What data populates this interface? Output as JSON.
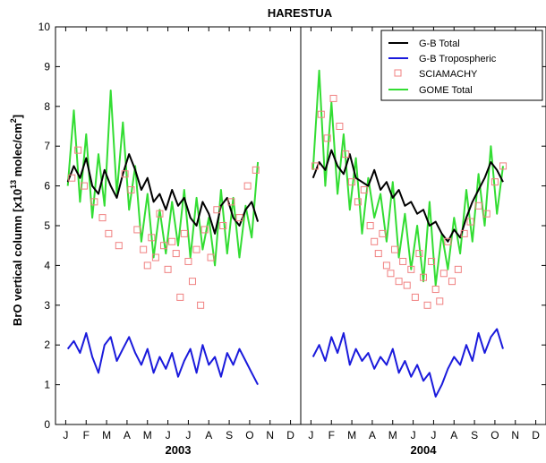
{
  "chart_data": {
    "type": "line",
    "title": "HARESTUA",
    "ylabel": "BrO vertical column [x10",
    "ylabel_exp": "13",
    "ylabel_mid": " molec/cm",
    "ylabel_exp2": "2",
    "ylabel_end": "]",
    "ylim": [
      0,
      10
    ],
    "yticks": [
      0,
      1,
      2,
      3,
      4,
      5,
      6,
      7,
      8,
      9,
      10
    ],
    "months": [
      "J",
      "F",
      "M",
      "A",
      "M",
      "J",
      "J",
      "A",
      "S",
      "O",
      "N",
      "D"
    ],
    "years": [
      "2003",
      "2004"
    ],
    "legend_position": "top-right",
    "colors": {
      "gb_total": "#000000",
      "gb_trop": "#1a1adc",
      "sciamachy": "#f08080",
      "gome": "#33dd33"
    },
    "series": [
      {
        "name": "G-B Total",
        "type": "line",
        "panels": [
          {
            "x": [
              0.6,
              0.9,
              1.2,
              1.5,
              1.8,
              2.1,
              2.4,
              2.7,
              3.0,
              3.3,
              3.6,
              3.9,
              4.2,
              4.5,
              4.8,
              5.1,
              5.4,
              5.7,
              6.0,
              6.3,
              6.6,
              6.9,
              7.2,
              7.5,
              7.8,
              8.1,
              8.4,
              8.7,
              9.0,
              9.3,
              9.6,
              9.9
            ],
            "y": [
              6.1,
              6.5,
              6.2,
              6.7,
              6.0,
              5.8,
              6.4,
              6.0,
              5.7,
              6.3,
              6.8,
              6.4,
              5.9,
              6.2,
              5.6,
              5.8,
              5.4,
              5.9,
              5.5,
              5.7,
              5.2,
              5.0,
              5.6,
              5.3,
              4.8,
              5.5,
              5.7,
              5.2,
              5.0,
              5.4,
              5.6,
              5.1
            ]
          },
          {
            "x": [
              0.6,
              0.9,
              1.2,
              1.5,
              1.8,
              2.1,
              2.4,
              2.7,
              3.0,
              3.3,
              3.6,
              3.9,
              4.2,
              4.5,
              4.8,
              5.1,
              5.4,
              5.7,
              6.0,
              6.3,
              6.6,
              6.9,
              7.2,
              7.5,
              7.8,
              8.1,
              8.4,
              8.7,
              9.0,
              9.3,
              9.6,
              9.9
            ],
            "y": [
              6.2,
              6.6,
              6.4,
              6.9,
              6.5,
              6.3,
              6.8,
              6.2,
              6.1,
              6.0,
              6.4,
              5.9,
              6.1,
              5.7,
              5.9,
              5.5,
              5.6,
              5.3,
              5.4,
              5.0,
              5.1,
              4.8,
              4.6,
              4.9,
              4.7,
              5.2,
              5.6,
              5.9,
              6.2,
              6.6,
              6.4,
              6.1
            ]
          }
        ]
      },
      {
        "name": "G-B Tropospheric",
        "type": "line",
        "panels": [
          {
            "x": [
              0.6,
              0.9,
              1.2,
              1.5,
              1.8,
              2.1,
              2.4,
              2.7,
              3.0,
              3.3,
              3.6,
              3.9,
              4.2,
              4.5,
              4.8,
              5.1,
              5.4,
              5.7,
              6.0,
              6.3,
              6.6,
              6.9,
              7.2,
              7.5,
              7.8,
              8.1,
              8.4,
              8.7,
              9.0,
              9.3,
              9.6,
              9.9
            ],
            "y": [
              1.9,
              2.1,
              1.8,
              2.3,
              1.7,
              1.3,
              2.0,
              2.2,
              1.6,
              1.9,
              2.2,
              1.8,
              1.5,
              1.9,
              1.3,
              1.7,
              1.4,
              1.8,
              1.2,
              1.6,
              1.9,
              1.3,
              2.0,
              1.5,
              1.7,
              1.2,
              1.8,
              1.5,
              1.9,
              1.6,
              1.3,
              1.0
            ]
          },
          {
            "x": [
              0.6,
              0.9,
              1.2,
              1.5,
              1.8,
              2.1,
              2.4,
              2.7,
              3.0,
              3.3,
              3.6,
              3.9,
              4.2,
              4.5,
              4.8,
              5.1,
              5.4,
              5.7,
              6.0,
              6.3,
              6.6,
              6.9,
              7.2,
              7.5,
              7.8,
              8.1,
              8.4,
              8.7,
              9.0,
              9.3,
              9.6,
              9.9
            ],
            "y": [
              1.7,
              2.0,
              1.6,
              2.2,
              1.8,
              2.3,
              1.5,
              1.9,
              1.6,
              1.8,
              1.4,
              1.7,
              1.5,
              1.9,
              1.3,
              1.6,
              1.2,
              1.5,
              1.1,
              1.3,
              0.7,
              1.0,
              1.4,
              1.7,
              1.5,
              2.0,
              1.6,
              2.3,
              1.8,
              2.2,
              2.4,
              1.9
            ]
          }
        ]
      },
      {
        "name": "SCIAMACHY",
        "type": "scatter",
        "panels": [
          {
            "x": [
              0.8,
              1.1,
              1.4,
              1.9,
              2.3,
              2.6,
              3.1,
              3.4,
              3.7,
              4.0,
              4.3,
              4.5,
              4.7,
              4.9,
              5.1,
              5.3,
              5.5,
              5.7,
              5.9,
              6.1,
              6.3,
              6.5,
              6.7,
              6.9,
              7.1,
              7.3,
              7.6,
              7.9,
              8.2,
              8.6,
              9.0,
              9.4,
              9.8
            ],
            "y": [
              6.2,
              6.9,
              6.0,
              5.6,
              5.2,
              4.8,
              4.5,
              6.3,
              5.9,
              4.9,
              4.4,
              4.0,
              4.7,
              4.2,
              5.3,
              4.5,
              3.9,
              4.6,
              4.3,
              3.2,
              4.8,
              4.1,
              3.6,
              4.4,
              3.0,
              4.9,
              4.2,
              5.4,
              5.0,
              5.6,
              5.2,
              6.0,
              6.4
            ]
          },
          {
            "x": [
              0.7,
              1.0,
              1.3,
              1.6,
              1.9,
              2.2,
              2.5,
              2.8,
              3.1,
              3.4,
              3.6,
              3.8,
              4.0,
              4.2,
              4.4,
              4.6,
              4.8,
              5.0,
              5.2,
              5.4,
              5.6,
              5.8,
              6.0,
              6.2,
              6.4,
              6.6,
              6.8,
              7.0,
              7.2,
              7.4,
              7.7,
              8.0,
              8.3,
              8.7,
              9.1,
              9.5,
              9.9
            ],
            "y": [
              6.5,
              7.8,
              7.2,
              8.2,
              7.5,
              6.8,
              6.1,
              5.6,
              5.9,
              5.0,
              4.6,
              4.3,
              4.8,
              4.0,
              3.8,
              4.4,
              3.6,
              4.1,
              3.5,
              3.9,
              3.2,
              4.3,
              3.7,
              3.0,
              4.1,
              3.4,
              3.1,
              3.8,
              4.6,
              3.6,
              3.9,
              4.8,
              5.1,
              5.5,
              5.3,
              6.1,
              6.5
            ]
          }
        ]
      },
      {
        "name": "GOME Total",
        "type": "line",
        "panels": [
          {
            "x": [
              0.6,
              0.9,
              1.2,
              1.5,
              1.8,
              2.1,
              2.4,
              2.7,
              3.0,
              3.3,
              3.6,
              3.9,
              4.2,
              4.5,
              4.8,
              5.1,
              5.4,
              5.7,
              6.0,
              6.3,
              6.6,
              6.9,
              7.2,
              7.5,
              7.8,
              8.1,
              8.4,
              8.7,
              9.0,
              9.3,
              9.6,
              9.9
            ],
            "y": [
              6.0,
              7.9,
              5.6,
              7.3,
              5.2,
              6.8,
              5.5,
              8.4,
              5.8,
              7.6,
              5.4,
              6.5,
              4.6,
              5.8,
              4.2,
              5.4,
              4.3,
              5.6,
              4.5,
              5.9,
              4.2,
              5.7,
              4.4,
              5.2,
              4.0,
              5.9,
              4.3,
              5.7,
              4.2,
              5.5,
              4.7,
              6.6
            ]
          },
          {
            "x": [
              0.6,
              0.9,
              1.2,
              1.5,
              1.8,
              2.1,
              2.4,
              2.7,
              3.0,
              3.3,
              3.6,
              3.9,
              4.2,
              4.5,
              4.8,
              5.1,
              5.4,
              5.7,
              6.0,
              6.3,
              6.6,
              6.9,
              7.2,
              7.5,
              7.8,
              8.1,
              8.4,
              8.7,
              9.0,
              9.3,
              9.6,
              9.9
            ],
            "y": [
              6.4,
              8.9,
              6.0,
              8.1,
              5.8,
              7.3,
              5.4,
              6.7,
              4.8,
              6.2,
              5.2,
              5.8,
              4.6,
              6.1,
              4.2,
              5.3,
              3.9,
              5.0,
              3.6,
              5.6,
              3.5,
              4.8,
              3.9,
              5.2,
              4.3,
              5.9,
              4.6,
              6.3,
              5.0,
              7.0,
              5.3,
              6.5
            ]
          }
        ]
      }
    ]
  }
}
